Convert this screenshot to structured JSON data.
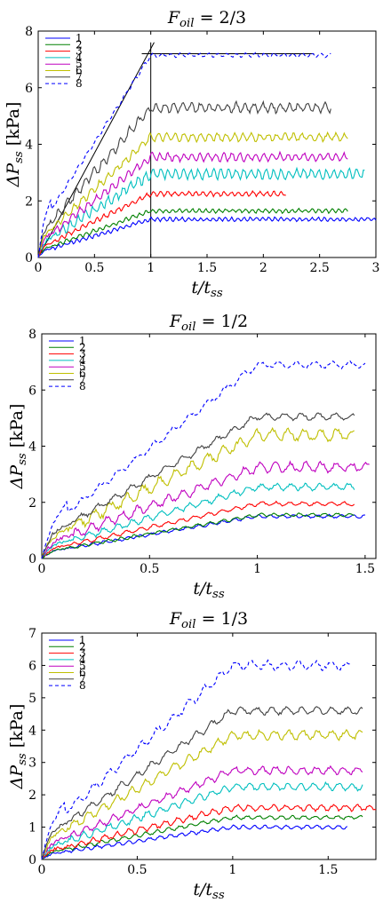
{
  "figure": {
    "series_colors": [
      "#0000ff",
      "#008000",
      "#ff0000",
      "#00bfbf",
      "#bf00bf",
      "#bfbf00",
      "#404040",
      "#0000ff"
    ],
    "series_dashed": [
      false,
      false,
      false,
      false,
      false,
      false,
      false,
      true
    ]
  },
  "chart_data": [
    {
      "type": "line",
      "title": "F_oil = 2/3",
      "title_main": "F",
      "title_sub": "oil",
      "title_rest": " = 2/3",
      "xlabel_main": "t/t",
      "xlabel_sub": "ss",
      "ylabel_main": "ΔP",
      "ylabel_sub": "ss",
      "ylabel_unit": " [kPa]",
      "xlim": [
        0,
        3
      ],
      "ylim": [
        0,
        8
      ],
      "xticks": [
        "0",
        "0.5",
        "1",
        "1.5",
        "2",
        "2.5",
        "3"
      ],
      "yticks": [
        "0",
        "2",
        "4",
        "6",
        "8"
      ],
      "legend_position": "top-left",
      "series": [
        {
          "name": "1",
          "plateau": 1.35,
          "end": 3.0,
          "osc": 0.06
        },
        {
          "name": "2",
          "plateau": 1.65,
          "end": 2.75,
          "osc": 0.06
        },
        {
          "name": "3",
          "plateau": 2.25,
          "end": 2.2,
          "osc": 0.07
        },
        {
          "name": "4",
          "plateau": 2.95,
          "end": 2.9,
          "osc": 0.15
        },
        {
          "name": "5",
          "plateau": 3.55,
          "end": 2.75,
          "osc": 0.12
        },
        {
          "name": "6",
          "plateau": 4.25,
          "end": 2.75,
          "osc": 0.12
        },
        {
          "name": "7",
          "plateau": 5.3,
          "end": 2.6,
          "osc": 0.15
        },
        {
          "name": "8",
          "plateau": 7.15,
          "end": 2.6,
          "osc": 0.06
        }
      ],
      "guide_lines": [
        {
          "x": [
            1,
            1
          ],
          "y": [
            0,
            7.6
          ]
        },
        {
          "x": [
            0.92,
            2.45
          ],
          "y": [
            7.2,
            7.2
          ]
        },
        {
          "x": [
            0,
            1.03
          ],
          "y": [
            0,
            7.6
          ]
        }
      ]
    },
    {
      "type": "line",
      "title": "F_oil = 1/2",
      "title_main": "F",
      "title_sub": "oil",
      "title_rest": " = 1/2",
      "xlabel_main": "t/t",
      "xlabel_sub": "ss",
      "ylabel_main": "ΔP",
      "ylabel_sub": "ss",
      "ylabel_unit": " [kPa]",
      "xlim": [
        0,
        1.55
      ],
      "ylim": [
        0,
        8
      ],
      "xticks": [
        "0",
        "0.5",
        "1",
        "1.5"
      ],
      "xtick_values": [
        0,
        0.5,
        1,
        1.5
      ],
      "yticks": [
        "0",
        "2",
        "4",
        "6",
        "8"
      ],
      "legend_position": "top-left",
      "series": [
        {
          "name": "1",
          "plateau": 1.5,
          "end": 1.5,
          "osc": 0.05
        },
        {
          "name": "2",
          "plateau": 1.55,
          "end": 1.45,
          "osc": 0.05
        },
        {
          "name": "3",
          "plateau": 1.95,
          "end": 1.45,
          "osc": 0.06
        },
        {
          "name": "4",
          "plateau": 2.55,
          "end": 1.45,
          "osc": 0.1
        },
        {
          "name": "5",
          "plateau": 3.25,
          "end": 1.52,
          "osc": 0.15
        },
        {
          "name": "6",
          "plateau": 4.4,
          "end": 1.45,
          "osc": 0.18
        },
        {
          "name": "7",
          "plateau": 5.05,
          "end": 1.45,
          "osc": 0.1
        },
        {
          "name": "8",
          "plateau": 6.9,
          "end": 1.5,
          "osc": 0.1
        }
      ]
    },
    {
      "type": "line",
      "title": "F_oil = 1/3",
      "title_main": "F",
      "title_sub": "oil",
      "title_rest": " = 1/3",
      "xlabel_main": "t/t",
      "xlabel_sub": "ss",
      "ylabel_main": "ΔP",
      "ylabel_sub": "ss",
      "ylabel_unit": " [kPa]",
      "xlim": [
        0,
        1.75
      ],
      "ylim": [
        0,
        7
      ],
      "xticks": [
        "0",
        "0.5",
        "1",
        "1.5"
      ],
      "xtick_values": [
        0,
        0.5,
        1,
        1.5
      ],
      "yticks": [
        "0",
        "1",
        "2",
        "3",
        "4",
        "5",
        "6",
        "7"
      ],
      "legend_position": "top-left",
      "series": [
        {
          "name": "1",
          "plateau": 1.0,
          "end": 1.6,
          "osc": 0.05
        },
        {
          "name": "2",
          "plateau": 1.3,
          "end": 1.68,
          "osc": 0.05
        },
        {
          "name": "3",
          "plateau": 1.6,
          "end": 1.75,
          "osc": 0.08
        },
        {
          "name": "4",
          "plateau": 2.25,
          "end": 1.68,
          "osc": 0.1
        },
        {
          "name": "5",
          "plateau": 2.75,
          "end": 1.68,
          "osc": 0.1
        },
        {
          "name": "6",
          "plateau": 3.85,
          "end": 1.68,
          "osc": 0.12
        },
        {
          "name": "7",
          "plateau": 4.6,
          "end": 1.68,
          "osc": 0.1
        },
        {
          "name": "8",
          "plateau": 6.0,
          "end": 1.62,
          "osc": 0.12
        }
      ]
    }
  ]
}
